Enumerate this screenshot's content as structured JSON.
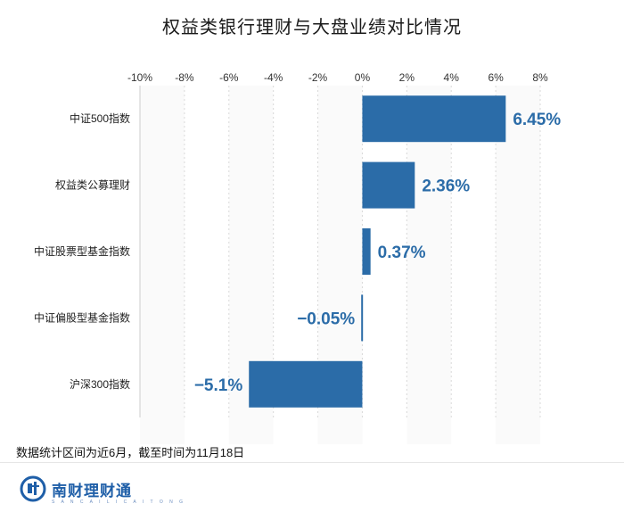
{
  "title": "权益类银行理财与大盘业绩对比情况",
  "note": "数据统计区间为近6月，截至时间为11月18日",
  "brand": {
    "name": "南财理财通",
    "sub": "S A N C A I   L I C A I   T O N G",
    "logo_icon": "nancai-logo-icon"
  },
  "colors": {
    "bar": "#2b6ca8",
    "label": "#2b6ca8"
  },
  "chart_data": {
    "type": "bar",
    "orientation": "horizontal",
    "title": "权益类银行理财与大盘业绩对比情况",
    "categories": [
      "中证500指数",
      "权益类公募理财",
      "中证股票型基金指数",
      "中证偏股型基金指数",
      "沪深300指数"
    ],
    "values": [
      6.45,
      2.36,
      0.37,
      -0.05,
      -5.1
    ],
    "value_labels": [
      "6.45%",
      "2.36%",
      "0.37%",
      "−0.05%",
      "−5.1%"
    ],
    "xlim": [
      -10,
      8
    ],
    "xticks": [
      -10,
      -8,
      -6,
      -4,
      -2,
      0,
      2,
      4,
      6,
      8
    ],
    "xtick_labels": [
      "-10%",
      "-8%",
      "-6%",
      "-4%",
      "-2%",
      "0%",
      "2%",
      "4%",
      "6%",
      "8%"
    ],
    "axis_position": "top",
    "grid": true
  }
}
